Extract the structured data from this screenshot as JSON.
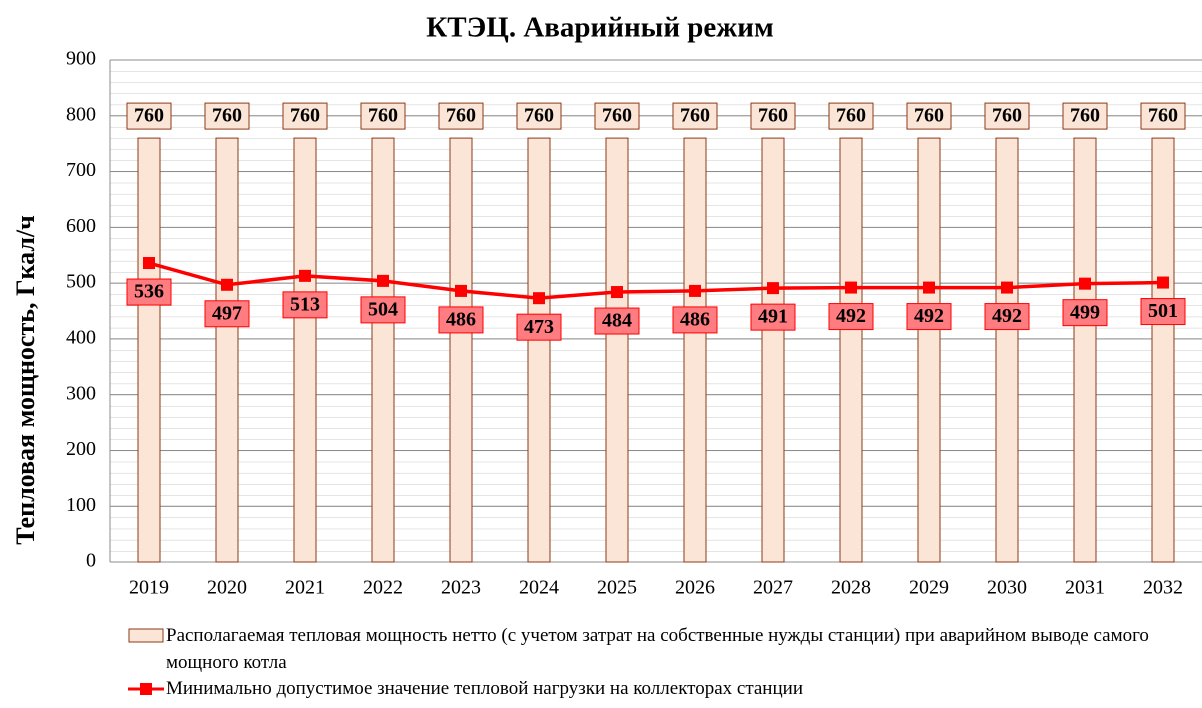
{
  "chart_data": {
    "type": "bar_line",
    "title": "КТЭЦ. Аварийный режим",
    "y_label": "Тепловая мощность, Гкал/ч",
    "categories": [
      "2019",
      "2020",
      "2021",
      "2022",
      "2023",
      "2024",
      "2025",
      "2026",
      "2027",
      "2028",
      "2029",
      "2030",
      "2031",
      "2032"
    ],
    "series": [
      {
        "name": "Располагаемая тепловая мощность нетто (с учетом затрат на собственные нужды станции) при аварийном выводе самого мощного котла",
        "type": "bar",
        "color": "#fbe5d6",
        "edge": "#8b3a1a",
        "values": [
          760,
          760,
          760,
          760,
          760,
          760,
          760,
          760,
          760,
          760,
          760,
          760,
          760,
          760
        ]
      },
      {
        "name": "Минимально допустимое значение тепловой нагрузки на коллекторах станции",
        "type": "line",
        "color": "#ff0000",
        "label_color": "#ff7c80",
        "values": [
          536,
          497,
          513,
          504,
          486,
          473,
          484,
          486,
          491,
          492,
          492,
          492,
          499,
          501
        ]
      }
    ],
    "ylim": [
      0,
      900
    ],
    "yticks": [
      0,
      100,
      200,
      300,
      400,
      500,
      600,
      700,
      800,
      900
    ],
    "grid": true
  }
}
